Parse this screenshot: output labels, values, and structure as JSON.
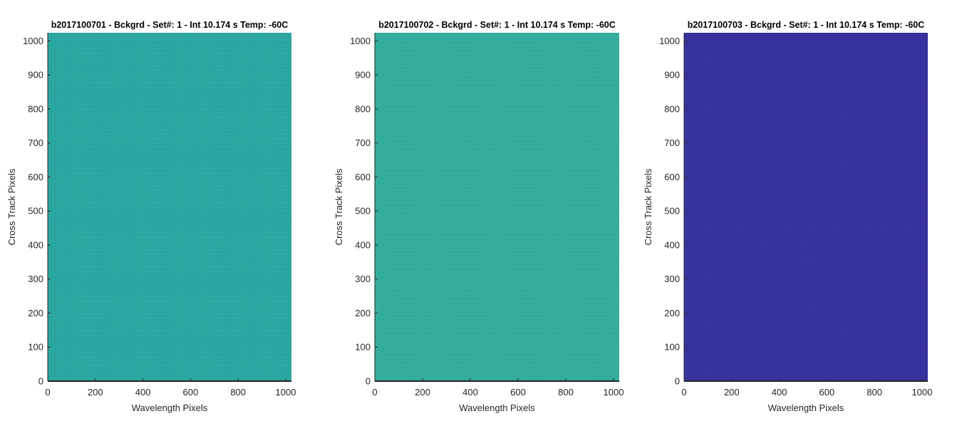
{
  "figure": {
    "background": "#ffffff"
  },
  "chart_data": [
    {
      "type": "heatmap",
      "title": "b2017100701 - Bckgrd - Set#: 1 - Int 10.174 s Temp: -60C",
      "xlabel": "Wavelength Pixels",
      "ylabel": "Cross Track Pixels",
      "xlim": [
        0,
        1024
      ],
      "ylim": [
        0,
        1024
      ],
      "xticks": [
        0,
        200,
        400,
        600,
        800,
        1000
      ],
      "yticks": [
        0,
        100,
        200,
        300,
        400,
        500,
        600,
        700,
        800,
        900,
        1000
      ],
      "grid": false,
      "colormap": "parula",
      "base_color": "#2aa6a2",
      "noise_colors": [
        "#1f97b0",
        "#36b09a",
        "#4bb88a"
      ],
      "description_value": "uniform background noise, mid colormap range (teal)"
    },
    {
      "type": "heatmap",
      "title": "b2017100702 - Bckgrd - Set#: 1 - Int 10.174 s Temp: -60C",
      "xlabel": "Wavelength Pixels",
      "ylabel": "Cross Track Pixels",
      "xlim": [
        0,
        1024
      ],
      "ylim": [
        0,
        1024
      ],
      "xticks": [
        0,
        200,
        400,
        600,
        800,
        1000
      ],
      "yticks": [
        0,
        100,
        200,
        300,
        400,
        500,
        600,
        700,
        800,
        900,
        1000
      ],
      "grid": false,
      "colormap": "parula",
      "base_color": "#31ad9c",
      "noise_colors": [
        "#24a0aa",
        "#3db493",
        "#56bd85"
      ],
      "description_value": "uniform background noise, mid colormap range (teal-green)"
    },
    {
      "type": "heatmap",
      "title": "b2017100703 - Bckgrd - Set#: 1 - Int 10.174 s Temp: -60C",
      "xlabel": "Wavelength Pixels",
      "ylabel": "Cross Track Pixels",
      "xlim": [
        0,
        1024
      ],
      "ylim": [
        0,
        1024
      ],
      "xticks": [
        0,
        200,
        400,
        600,
        800,
        1000
      ],
      "yticks": [
        0,
        100,
        200,
        300,
        400,
        500,
        600,
        700,
        800,
        900,
        1000
      ],
      "grid": false,
      "colormap": "parula",
      "base_color": "#38329c",
      "noise_colors": [
        "#3534a0",
        "#3a30a0",
        "#3436a2"
      ],
      "description_value": "uniform background, low colormap range (dark blue)"
    }
  ]
}
